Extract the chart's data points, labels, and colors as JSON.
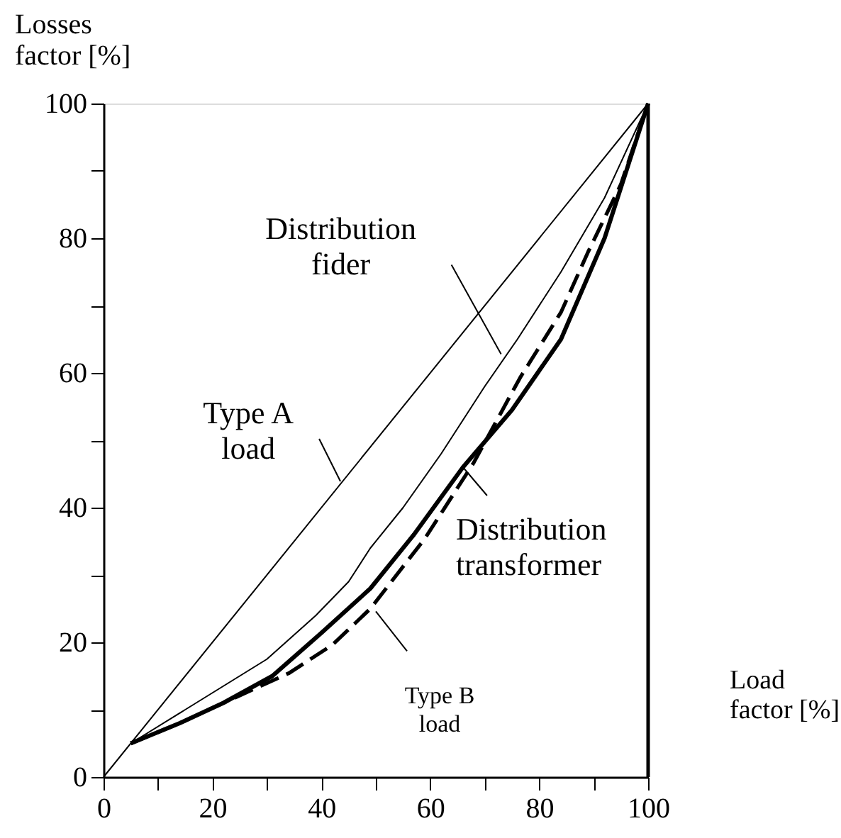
{
  "chart_data": {
    "type": "line",
    "xlabel": "Load factor [%]",
    "ylabel": "Losses factor [%]",
    "xlim": [
      0,
      100
    ],
    "ylim": [
      0,
      100
    ],
    "xticks": [
      0,
      {
        "value": 10,
        "label": null
      },
      20,
      {
        "value": 30,
        "label": null
      },
      40,
      {
        "value": 50,
        "label": null
      },
      60,
      {
        "value": 70,
        "label": null
      },
      80,
      {
        "value": 90,
        "label": null
      },
      100
    ],
    "yticks": [
      0,
      {
        "value": 10,
        "label": null
      },
      20,
      {
        "value": 30,
        "label": null
      },
      40,
      {
        "value": 50,
        "label": null
      },
      60,
      {
        "value": 70,
        "label": null
      },
      80,
      {
        "value": 90,
        "label": null
      },
      100
    ],
    "grid": false,
    "marker": "none",
    "series": [
      {
        "color": "#000000",
        "line_style": "solid",
        "x": [
          0,
          100
        ],
        "values": [
          0,
          100
        ]
      },
      {
        "color": "#000000",
        "line_style": "solid",
        "x": [
          5,
          15,
          23,
          30,
          39,
          45,
          49,
          55,
          62,
          70,
          76,
          84,
          92,
          100
        ],
        "values": [
          5,
          10,
          14,
          17.5,
          24,
          29,
          34,
          40,
          48,
          58,
          65,
          75,
          86,
          100
        ]
      },
      {
        "color": "#000000",
        "line_style": "solid",
        "x": [
          5,
          14,
          22,
          31,
          40,
          49,
          57,
          66,
          75,
          84,
          92,
          100
        ],
        "values": [
          5,
          8,
          11,
          15,
          21.4,
          28,
          36,
          46,
          54.5,
          65,
          80,
          100
        ]
      },
      {
        "color": "#000000",
        "line_style": "dashed",
        "x": [
          5,
          14,
          22,
          34,
          42,
          49,
          59,
          68,
          76.5,
          84,
          89,
          95,
          100
        ],
        "values": [
          5,
          8,
          11,
          15.4,
          19.6,
          25,
          35.4,
          46.7,
          59.3,
          69,
          78,
          88,
          100
        ]
      }
    ],
    "annotations": [
      {
        "text": "Type A load",
        "x": 43.5,
        "y": 43.9
      },
      {
        "text": "Distribution fider",
        "x": 73,
        "y": 62.8
      },
      {
        "text": "Distribution transformer",
        "x": 66,
        "y": 46
      },
      {
        "text": "Type B load",
        "x": 50,
        "y": 24.6
      }
    ]
  }
}
